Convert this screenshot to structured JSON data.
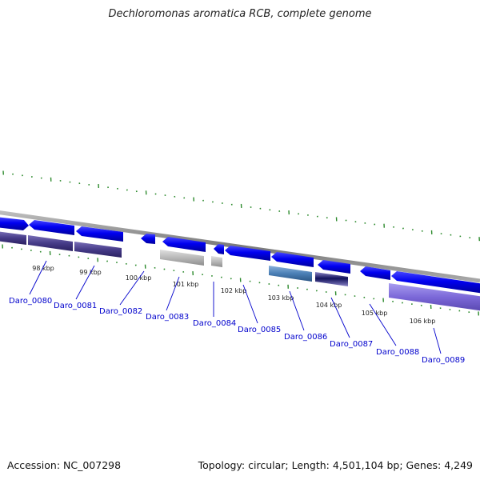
{
  "title": "Dechloromonas aromatica RCB, complete genome",
  "footer": {
    "accession": "Accession: NC_007298",
    "summary": "Topology: circular; Length: 4,501,104 bp; Genes: 4,249"
  },
  "colors": {
    "forward_gene": "#0a0af0",
    "reverse_gene": "#4a3f8c",
    "hypothetical_gene": "#b8b8b8",
    "teal_gene": "#4a7fb5",
    "violet_gene": "#7b68d8",
    "backbone": "#8a8a8a",
    "tick": "#2e8b2e",
    "label": "#0000cc"
  },
  "ruler": [
    {
      "label": "98 kbp"
    },
    {
      "label": "99 kbp"
    },
    {
      "label": "100 kbp"
    },
    {
      "label": "101 kbp"
    },
    {
      "label": "102 kbp"
    },
    {
      "label": "103 kbp"
    },
    {
      "label": "104 kbp"
    },
    {
      "label": "105 kbp"
    },
    {
      "label": "106 kbp"
    }
  ],
  "genes": [
    {
      "id": "Daro_0080"
    },
    {
      "id": "Daro_0081"
    },
    {
      "id": "Daro_0082"
    },
    {
      "id": "Daro_0083"
    },
    {
      "id": "Daro_0084"
    },
    {
      "id": "Daro_0085"
    },
    {
      "id": "Daro_0086"
    },
    {
      "id": "Daro_0087"
    },
    {
      "id": "Daro_0088"
    },
    {
      "id": "Daro_0089"
    }
  ]
}
